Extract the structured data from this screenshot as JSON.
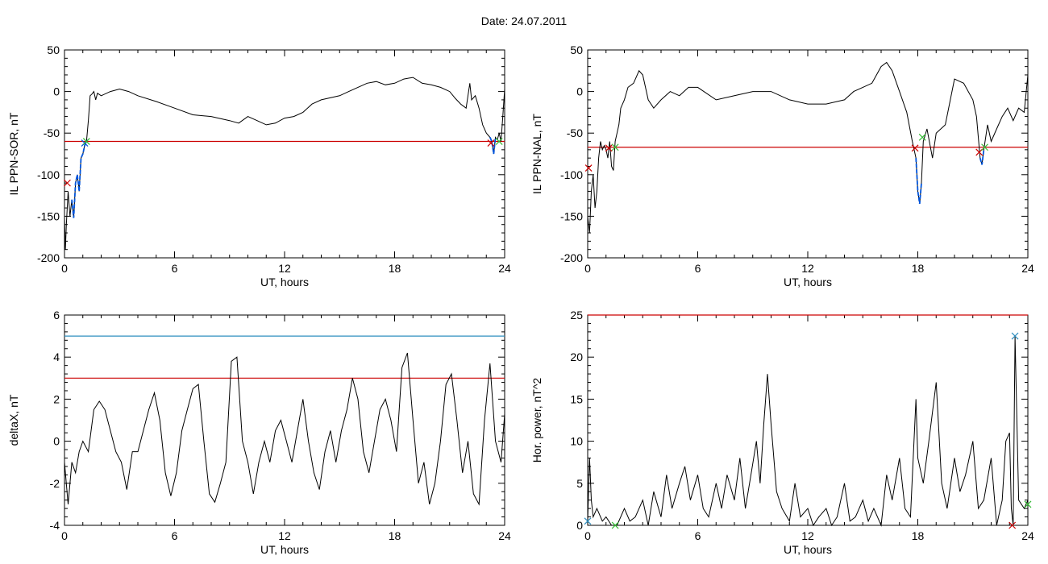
{
  "page": {
    "title": "Date:  24.07.2011"
  },
  "chart_data": [
    {
      "type": "line",
      "id": "sor",
      "xlabel": "UT, hours",
      "ylabel": "IL PPN-SOR, nT",
      "xlim": [
        0,
        24
      ],
      "ylim": [
        -200,
        50
      ],
      "xticks": [
        0,
        6,
        12,
        18,
        24
      ],
      "yticks": [
        50,
        0,
        -50,
        -100,
        -150,
        -200
      ],
      "threshold": {
        "value": -60,
        "color": "#cc0000"
      },
      "colors": {
        "series": "#000000",
        "highlight": "#0055dd"
      },
      "x": [
        0,
        0.05,
        0.1,
        0.15,
        0.2,
        0.3,
        0.4,
        0.5,
        0.6,
        0.7,
        0.8,
        0.9,
        1.0,
        1.1,
        1.2,
        1.3,
        1.4,
        1.5,
        1.6,
        1.7,
        1.8,
        2.0,
        2.5,
        3.0,
        3.5,
        4.0,
        5.0,
        6.0,
        7.0,
        8.0,
        9.0,
        9.5,
        10.0,
        10.5,
        11.0,
        11.5,
        12.0,
        12.5,
        13.0,
        13.5,
        14.0,
        15.0,
        15.5,
        16.0,
        16.5,
        17.0,
        17.5,
        18.0,
        18.5,
        19.0,
        19.5,
        20.0,
        20.5,
        21.0,
        21.3,
        21.6,
        21.9,
        22.1,
        22.2,
        22.4,
        22.6,
        22.8,
        23.0,
        23.2,
        23.3,
        23.4,
        23.5,
        23.6,
        23.7,
        23.8,
        23.9,
        24.0
      ],
      "values": [
        -150,
        -190,
        -160,
        -140,
        -120,
        -150,
        -130,
        -152,
        -110,
        -100,
        -120,
        -80,
        -75,
        -65,
        -60,
        -35,
        -5,
        -3,
        0,
        -10,
        -2,
        -5,
        0,
        3,
        0,
        -5,
        -12,
        -20,
        -28,
        -30,
        -35,
        -38,
        -30,
        -35,
        -40,
        -38,
        -32,
        -30,
        -25,
        -15,
        -10,
        -5,
        0,
        5,
        10,
        12,
        8,
        10,
        15,
        17,
        10,
        8,
        5,
        0,
        -8,
        -15,
        -20,
        10,
        -10,
        -5,
        -20,
        -40,
        -50,
        -55,
        -60,
        -75,
        -55,
        -58,
        -50,
        -60,
        -30,
        3
      ],
      "highlight": {
        "x": [
          0.4,
          0.5,
          0.6,
          0.7,
          0.8,
          0.9,
          1.0,
          1.1,
          1.2
        ],
        "values": [
          -130,
          -152,
          -110,
          -100,
          -120,
          -80,
          -75,
          -65,
          -60
        ]
      },
      "highlight2": {
        "x": [
          23.2,
          23.3,
          23.4,
          23.5
        ],
        "values": [
          -55,
          -60,
          -75,
          -55
        ]
      },
      "markers": [
        {
          "x": 0.15,
          "value": -110,
          "color": "#cc0000"
        },
        {
          "x": 1.1,
          "value": -62,
          "color": "#0055dd"
        },
        {
          "x": 1.2,
          "value": -60,
          "color": "#33bb33"
        },
        {
          "x": 23.25,
          "value": -62,
          "color": "#cc0000"
        },
        {
          "x": 23.7,
          "value": -60,
          "color": "#33bb33"
        }
      ]
    },
    {
      "type": "line",
      "id": "nal",
      "xlabel": "UT, hours",
      "ylabel": "IL PPN-NAL, nT",
      "xlim": [
        0,
        24
      ],
      "ylim": [
        -200,
        50
      ],
      "xticks": [
        0,
        6,
        12,
        18,
        24
      ],
      "yticks": [
        50,
        0,
        -50,
        -100,
        -150,
        -200
      ],
      "threshold": {
        "value": -67,
        "color": "#cc0000"
      },
      "colors": {
        "series": "#000000",
        "highlight": "#0055dd"
      },
      "x": [
        0,
        0.1,
        0.2,
        0.3,
        0.4,
        0.5,
        0.6,
        0.7,
        0.8,
        0.9,
        1.0,
        1.1,
        1.2,
        1.3,
        1.4,
        1.5,
        1.6,
        1.7,
        1.8,
        2.0,
        2.2,
        2.5,
        2.8,
        3.0,
        3.3,
        3.6,
        4.0,
        4.5,
        5.0,
        5.5,
        6.0,
        7.0,
        8.0,
        9.0,
        10.0,
        11.0,
        12.0,
        13.0,
        14.0,
        14.5,
        15.0,
        15.5,
        16.0,
        16.3,
        16.6,
        17.0,
        17.4,
        17.7,
        17.9,
        18.0,
        18.1,
        18.2,
        18.3,
        18.5,
        18.8,
        19.0,
        19.5,
        20.0,
        20.5,
        21.0,
        21.2,
        21.4,
        21.5,
        21.6,
        21.8,
        22.0,
        22.3,
        22.6,
        22.9,
        23.2,
        23.5,
        23.8,
        24.0
      ],
      "values": [
        -150,
        -170,
        -120,
        -100,
        -140,
        -120,
        -80,
        -60,
        -70,
        -65,
        -70,
        -80,
        -60,
        -90,
        -95,
        -60,
        -50,
        -40,
        -20,
        -10,
        5,
        10,
        25,
        20,
        -10,
        -20,
        -10,
        0,
        -5,
        5,
        5,
        -10,
        -5,
        0,
        0,
        -10,
        -15,
        -15,
        -10,
        0,
        5,
        10,
        30,
        35,
        25,
        0,
        -25,
        -60,
        -80,
        -120,
        -135,
        -110,
        -60,
        -45,
        -80,
        -50,
        -40,
        15,
        10,
        -10,
        -30,
        -80,
        -88,
        -70,
        -40,
        -60,
        -45,
        -30,
        -20,
        -35,
        -20,
        -25,
        20
      ],
      "highlight": {
        "x": [
          17.9,
          18.0,
          18.1,
          18.2
        ],
        "values": [
          -80,
          -120,
          -135,
          -110
        ]
      },
      "highlight2": {
        "x": [
          21.4,
          21.5,
          21.6
        ],
        "values": [
          -80,
          -88,
          -70
        ]
      },
      "markers": [
        {
          "x": 0.05,
          "value": -92,
          "color": "#cc0000"
        },
        {
          "x": 1.15,
          "value": -68,
          "color": "#cc0000"
        },
        {
          "x": 1.5,
          "value": -67,
          "color": "#33bb33"
        },
        {
          "x": 17.85,
          "value": -68,
          "color": "#cc0000"
        },
        {
          "x": 18.25,
          "value": -55,
          "color": "#33bb33"
        },
        {
          "x": 21.35,
          "value": -73,
          "color": "#cc0000"
        },
        {
          "x": 21.65,
          "value": -67,
          "color": "#33bb33"
        }
      ]
    },
    {
      "type": "line",
      "id": "deltax",
      "xlabel": "UT, hours",
      "ylabel": "deltaX, nT",
      "xlim": [
        0,
        24
      ],
      "ylim": [
        -4,
        6
      ],
      "xticks": [
        0,
        6,
        12,
        18,
        24
      ],
      "yticks": [
        6,
        4,
        2,
        0,
        -2,
        -4
      ],
      "thresholds": [
        {
          "value": 5,
          "color": "#2f8fbf"
        },
        {
          "value": 3,
          "color": "#cc0000"
        }
      ],
      "colors": {
        "series": "#000000"
      },
      "x": [
        0,
        0.2,
        0.4,
        0.6,
        0.8,
        1.0,
        1.3,
        1.6,
        1.9,
        2.2,
        2.5,
        2.8,
        3.1,
        3.4,
        3.7,
        4.0,
        4.3,
        4.6,
        4.9,
        5.2,
        5.5,
        5.8,
        6.1,
        6.4,
        6.7,
        7.0,
        7.3,
        7.6,
        7.9,
        8.2,
        8.5,
        8.8,
        9.1,
        9.4,
        9.7,
        10.0,
        10.3,
        10.6,
        10.9,
        11.2,
        11.5,
        11.8,
        12.1,
        12.4,
        12.7,
        13.0,
        13.3,
        13.6,
        13.9,
        14.2,
        14.5,
        14.8,
        15.1,
        15.4,
        15.7,
        16.0,
        16.3,
        16.6,
        16.9,
        17.2,
        17.5,
        17.8,
        18.1,
        18.4,
        18.7,
        19.0,
        19.3,
        19.6,
        19.9,
        20.2,
        20.5,
        20.8,
        21.1,
        21.4,
        21.7,
        22.0,
        22.3,
        22.6,
        22.9,
        23.2,
        23.5,
        23.8,
        24.0
      ],
      "values": [
        -1,
        -3,
        -1,
        -1.5,
        -0.5,
        0,
        -0.5,
        1.5,
        1.9,
        1.5,
        0.5,
        -0.5,
        -1,
        -2.3,
        -0.5,
        -0.5,
        0.5,
        1.5,
        2.3,
        1,
        -1.5,
        -2.6,
        -1.5,
        0.5,
        1.5,
        2.5,
        2.7,
        0,
        -2.5,
        -2.9,
        -2,
        -1,
        3.8,
        4,
        0,
        -1,
        -2.5,
        -1,
        0,
        -1,
        0.5,
        1,
        0,
        -1,
        0.5,
        2,
        0,
        -1.5,
        -2.3,
        -0.5,
        0.5,
        -1,
        0.5,
        1.5,
        3,
        2,
        -0.5,
        -1.5,
        0,
        1.5,
        2,
        1,
        -0.5,
        3.5,
        4.2,
        1,
        -2,
        -1,
        -3,
        -2,
        0,
        2.7,
        3.2,
        1,
        -1.5,
        0,
        -2.5,
        -3,
        1,
        3.7,
        0,
        -1,
        1.3
      ]
    },
    {
      "type": "line",
      "id": "power",
      "xlabel": "UT, hours",
      "ylabel": "Hor. power, nT^2",
      "xlim": [
        0,
        24
      ],
      "ylim": [
        0,
        25
      ],
      "xticks": [
        0,
        6,
        12,
        18,
        24
      ],
      "yticks": [
        25,
        20,
        15,
        10,
        5,
        0
      ],
      "threshold": {
        "value": 25,
        "color": "#cc0000"
      },
      "colors": {
        "series": "#000000"
      },
      "x": [
        0,
        0.1,
        0.2,
        0.3,
        0.5,
        0.8,
        1.0,
        1.3,
        1.6,
        2.0,
        2.3,
        2.6,
        3.0,
        3.3,
        3.6,
        4.0,
        4.3,
        4.6,
        5.0,
        5.3,
        5.6,
        6.0,
        6.3,
        6.6,
        7.0,
        7.3,
        7.6,
        8.0,
        8.3,
        8.6,
        8.9,
        9.2,
        9.4,
        9.6,
        9.8,
        10.0,
        10.3,
        10.6,
        11.0,
        11.3,
        11.6,
        12.0,
        12.3,
        12.6,
        13.0,
        13.3,
        13.6,
        14.0,
        14.3,
        14.6,
        15.0,
        15.3,
        15.6,
        16.0,
        16.3,
        16.6,
        17.0,
        17.3,
        17.6,
        17.9,
        18.0,
        18.3,
        18.6,
        19.0,
        19.3,
        19.6,
        20.0,
        20.3,
        20.6,
        21.0,
        21.3,
        21.6,
        22.0,
        22.3,
        22.6,
        22.8,
        23.0,
        23.1,
        23.2,
        23.3,
        23.5,
        23.8,
        24.0
      ],
      "values": [
        0.5,
        8,
        3,
        1,
        2,
        0.5,
        1,
        0,
        0,
        2,
        0.5,
        1,
        3,
        0,
        4,
        1,
        6,
        2,
        5,
        7,
        3,
        6,
        2,
        1,
        5,
        2,
        6,
        3,
        8,
        2,
        6,
        10,
        5,
        12,
        18,
        12,
        4,
        2,
        0.5,
        5,
        1,
        2,
        0,
        1,
        2,
        0,
        1,
        5,
        0.5,
        1,
        3,
        0.5,
        2,
        0,
        6,
        3,
        8,
        2,
        1,
        15,
        8,
        5,
        10,
        17,
        5,
        2,
        8,
        4,
        6,
        10,
        2,
        3,
        8,
        0,
        3,
        10,
        11,
        2,
        0,
        22.5,
        3,
        2,
        3
      ],
      "markers": [
        {
          "x": 0.0,
          "value": 0.5,
          "color": "#2f8fbf"
        },
        {
          "x": 1.5,
          "value": 0,
          "color": "#33bb33"
        },
        {
          "x": 23.15,
          "value": 0,
          "color": "#cc0000"
        },
        {
          "x": 23.3,
          "value": 22.5,
          "color": "#2f8fbf"
        },
        {
          "x": 24.0,
          "value": 2.5,
          "color": "#33bb33"
        }
      ]
    }
  ]
}
